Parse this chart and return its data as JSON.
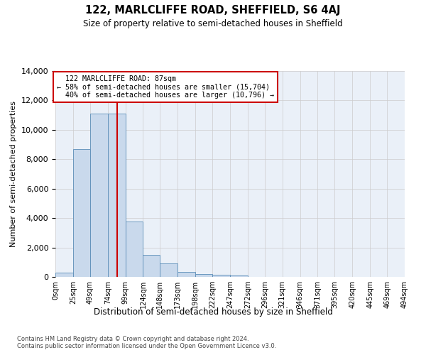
{
  "title": "122, MARLCLIFFE ROAD, SHEFFIELD, S6 4AJ",
  "subtitle": "Size of property relative to semi-detached houses in Sheffield",
  "xlabel": "Distribution of semi-detached houses by size in Sheffield",
  "ylabel": "Number of semi-detached properties",
  "property_size": 87,
  "property_label": "122 MARLCLIFFE ROAD: 87sqm",
  "pct_smaller": 58,
  "count_smaller": 15704,
  "pct_larger": 40,
  "count_larger": 10796,
  "bin_edges": [
    0,
    25,
    49,
    74,
    99,
    124,
    148,
    173,
    198,
    222,
    247,
    272,
    296,
    321,
    346,
    371,
    395,
    420,
    445,
    469,
    494
  ],
  "bin_labels": [
    "0sqm",
    "25sqm",
    "49sqm",
    "74sqm",
    "99sqm",
    "124sqm",
    "148sqm",
    "173sqm",
    "198sqm",
    "222sqm",
    "247sqm",
    "272sqm",
    "296sqm",
    "321sqm",
    "346sqm",
    "371sqm",
    "395sqm",
    "420sqm",
    "445sqm",
    "469sqm",
    "494sqm"
  ],
  "bar_values": [
    300,
    8700,
    11100,
    11100,
    3750,
    1500,
    900,
    350,
    200,
    150,
    100,
    0,
    0,
    0,
    0,
    0,
    0,
    0,
    0,
    0
  ],
  "bar_color": "#c9d9ec",
  "bar_edge_color": "#5b8db8",
  "vline_x": 87,
  "vline_color": "#cc0000",
  "annotation_box_color": "#cc0000",
  "ylim": [
    0,
    14000
  ],
  "yticks": [
    0,
    2000,
    4000,
    6000,
    8000,
    10000,
    12000,
    14000
  ],
  "grid_color": "#cccccc",
  "bg_color": "#eaf0f8",
  "footnote1": "Contains HM Land Registry data © Crown copyright and database right 2024.",
  "footnote2": "Contains public sector information licensed under the Open Government Licence v3.0."
}
